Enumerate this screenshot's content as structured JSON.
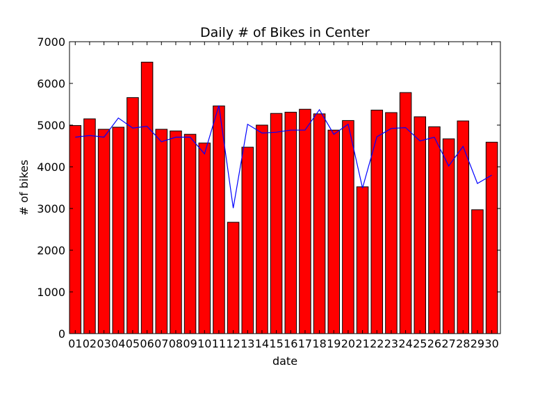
{
  "chart_data": {
    "type": "bar",
    "title": "Daily # of Bikes in Center",
    "xlabel": "date",
    "ylabel": "# of bikes",
    "categories": [
      "01",
      "02",
      "03",
      "04",
      "05",
      "06",
      "07",
      "08",
      "09",
      "10",
      "11",
      "12",
      "13",
      "14",
      "15",
      "16",
      "17",
      "18",
      "19",
      "20",
      "21",
      "22",
      "23",
      "24",
      "25",
      "26",
      "27",
      "28",
      "29",
      "30"
    ],
    "ylim": [
      0,
      7000
    ],
    "yticks": [
      0,
      1000,
      2000,
      3000,
      4000,
      5000,
      6000,
      7000
    ],
    "grid": false,
    "series": [
      {
        "type": "bar",
        "color": "#ff0000",
        "values": [
          4990,
          5150,
          4900,
          4950,
          5660,
          6510,
          4900,
          4860,
          4780,
          4570,
          5460,
          2670,
          4470,
          5000,
          5280,
          5310,
          5380,
          5270,
          4880,
          5110,
          3520,
          5360,
          5300,
          5780,
          5200,
          4960,
          4670,
          5100,
          2970,
          4590
        ]
      },
      {
        "type": "line",
        "color": "#0000ff",
        "values": [
          4710,
          4750,
          4710,
          5170,
          4930,
          4970,
          4600,
          4710,
          4710,
          4310,
          5470,
          3010,
          5020,
          4810,
          4830,
          4880,
          4880,
          5370,
          4780,
          5020,
          3490,
          4720,
          4920,
          4940,
          4620,
          4710,
          4020,
          4490,
          3600,
          3800
        ]
      }
    ]
  }
}
